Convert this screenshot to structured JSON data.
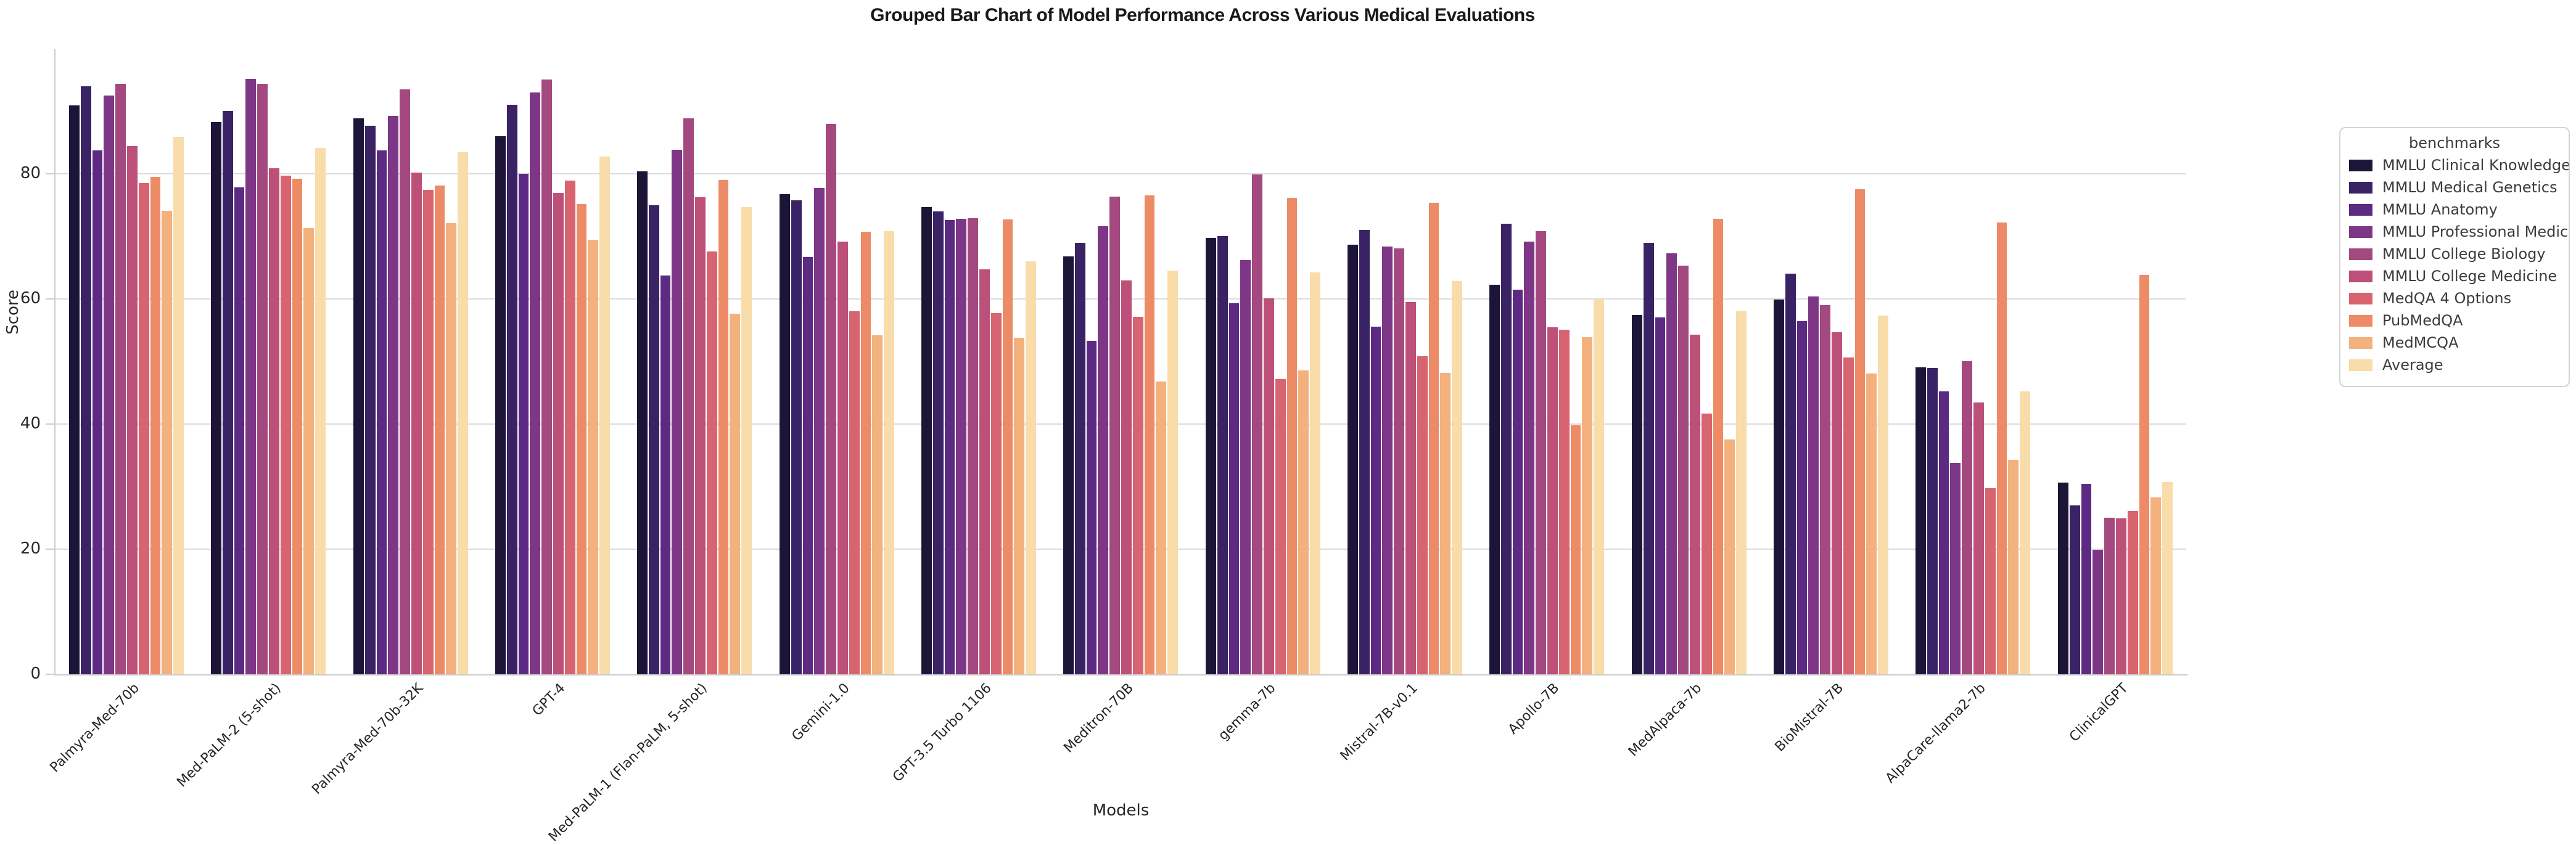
{
  "chart_data": {
    "type": "bar",
    "title": "Grouped Bar Chart of Model Performance Across Various Medical Evaluations",
    "xlabel": "Models",
    "ylabel": "Score",
    "ylim": [
      0,
      100
    ],
    "yticks": [
      0,
      20,
      40,
      60,
      80
    ],
    "grid": true,
    "legend_title": "benchmarks",
    "legend_position": "right outside",
    "categories": [
      "Palmyra-Med-70b",
      "Med-PaLM-2 (5-shot)",
      "Palmyra-Med-70b-32K",
      "GPT-4",
      "Med-PaLM-1 (Flan-PaLM, 5-shot)",
      "Gemini-1.0",
      "GPT-3.5 Turbo 1106",
      "Meditron-70B",
      "gemma-7b",
      "Mistral-7B-v0.1",
      "Apollo-7B",
      "MedAlpaca-7b",
      "BioMistral-7B",
      "AlpaCare-llama2-7b",
      "ClinicalGPT"
    ],
    "series": [
      {
        "name": "MMLU Clinical Knowledge",
        "color": "#1c1538",
        "values": [
          90.9,
          88.3,
          88.9,
          86.0,
          80.4,
          76.7,
          74.7,
          66.8,
          69.8,
          68.7,
          62.3,
          57.4,
          59.9,
          49.1,
          30.6
        ]
      },
      {
        "name": "MMLU Medical Genetics",
        "color": "#3a2365",
        "values": [
          94.0,
          90.0,
          87.7,
          91.0,
          75.0,
          75.8,
          74.0,
          69.0,
          70.0,
          71.0,
          72.0,
          69.0,
          64.0,
          49.0,
          27.0
        ]
      },
      {
        "name": "MMLU Anatomy",
        "color": "#5c2a82",
        "values": [
          83.7,
          77.8,
          83.7,
          80.0,
          63.7,
          66.7,
          72.6,
          53.3,
          59.3,
          55.6,
          61.5,
          57.0,
          56.5,
          45.2,
          30.4
        ]
      },
      {
        "name": "MMLU Professional Medicine",
        "color": "#7e3687",
        "values": [
          92.5,
          95.2,
          89.3,
          93.0,
          83.8,
          77.7,
          72.8,
          71.6,
          66.2,
          68.4,
          69.2,
          67.3,
          60.4,
          33.8,
          19.9
        ]
      },
      {
        "name": "MMLU College Biology",
        "color": "#a3497f",
        "values": [
          94.4,
          94.4,
          93.5,
          95.1,
          88.9,
          88.0,
          72.9,
          76.4,
          79.9,
          68.1,
          70.8,
          65.3,
          59.0,
          50.0,
          25.0
        ]
      },
      {
        "name": "MMLU College Medicine",
        "color": "#bd5078",
        "values": [
          84.4,
          80.9,
          80.2,
          76.9,
          76.3,
          69.2,
          64.7,
          63.0,
          60.1,
          59.5,
          55.5,
          54.3,
          54.7,
          43.4,
          24.9
        ]
      },
      {
        "name": "MedQA 4 Options",
        "color": "#d76470",
        "values": [
          78.5,
          79.7,
          77.4,
          78.9,
          67.6,
          58.0,
          57.7,
          57.1,
          47.2,
          50.8,
          55.1,
          41.7,
          50.6,
          29.8,
          26.1
        ]
      },
      {
        "name": "PubMedQA",
        "color": "#ec8b65",
        "values": [
          79.5,
          79.2,
          78.1,
          75.2,
          79.0,
          70.7,
          72.7,
          76.6,
          76.2,
          75.4,
          39.8,
          72.8,
          77.5,
          72.2,
          63.8
        ]
      },
      {
        "name": "MedMCQA",
        "color": "#f3b17d",
        "values": [
          74.1,
          71.3,
          72.1,
          69.5,
          57.6,
          54.2,
          53.8,
          46.8,
          48.6,
          48.2,
          53.9,
          37.5,
          48.1,
          34.3,
          28.3
        ]
      },
      {
        "name": "Average",
        "color": "#f8dca9",
        "values": [
          85.9,
          84.1,
          83.4,
          82.8,
          74.7,
          70.8,
          66.0,
          64.5,
          64.2,
          62.9,
          60.0,
          58.0,
          57.3,
          45.2,
          30.7
        ]
      }
    ]
  }
}
